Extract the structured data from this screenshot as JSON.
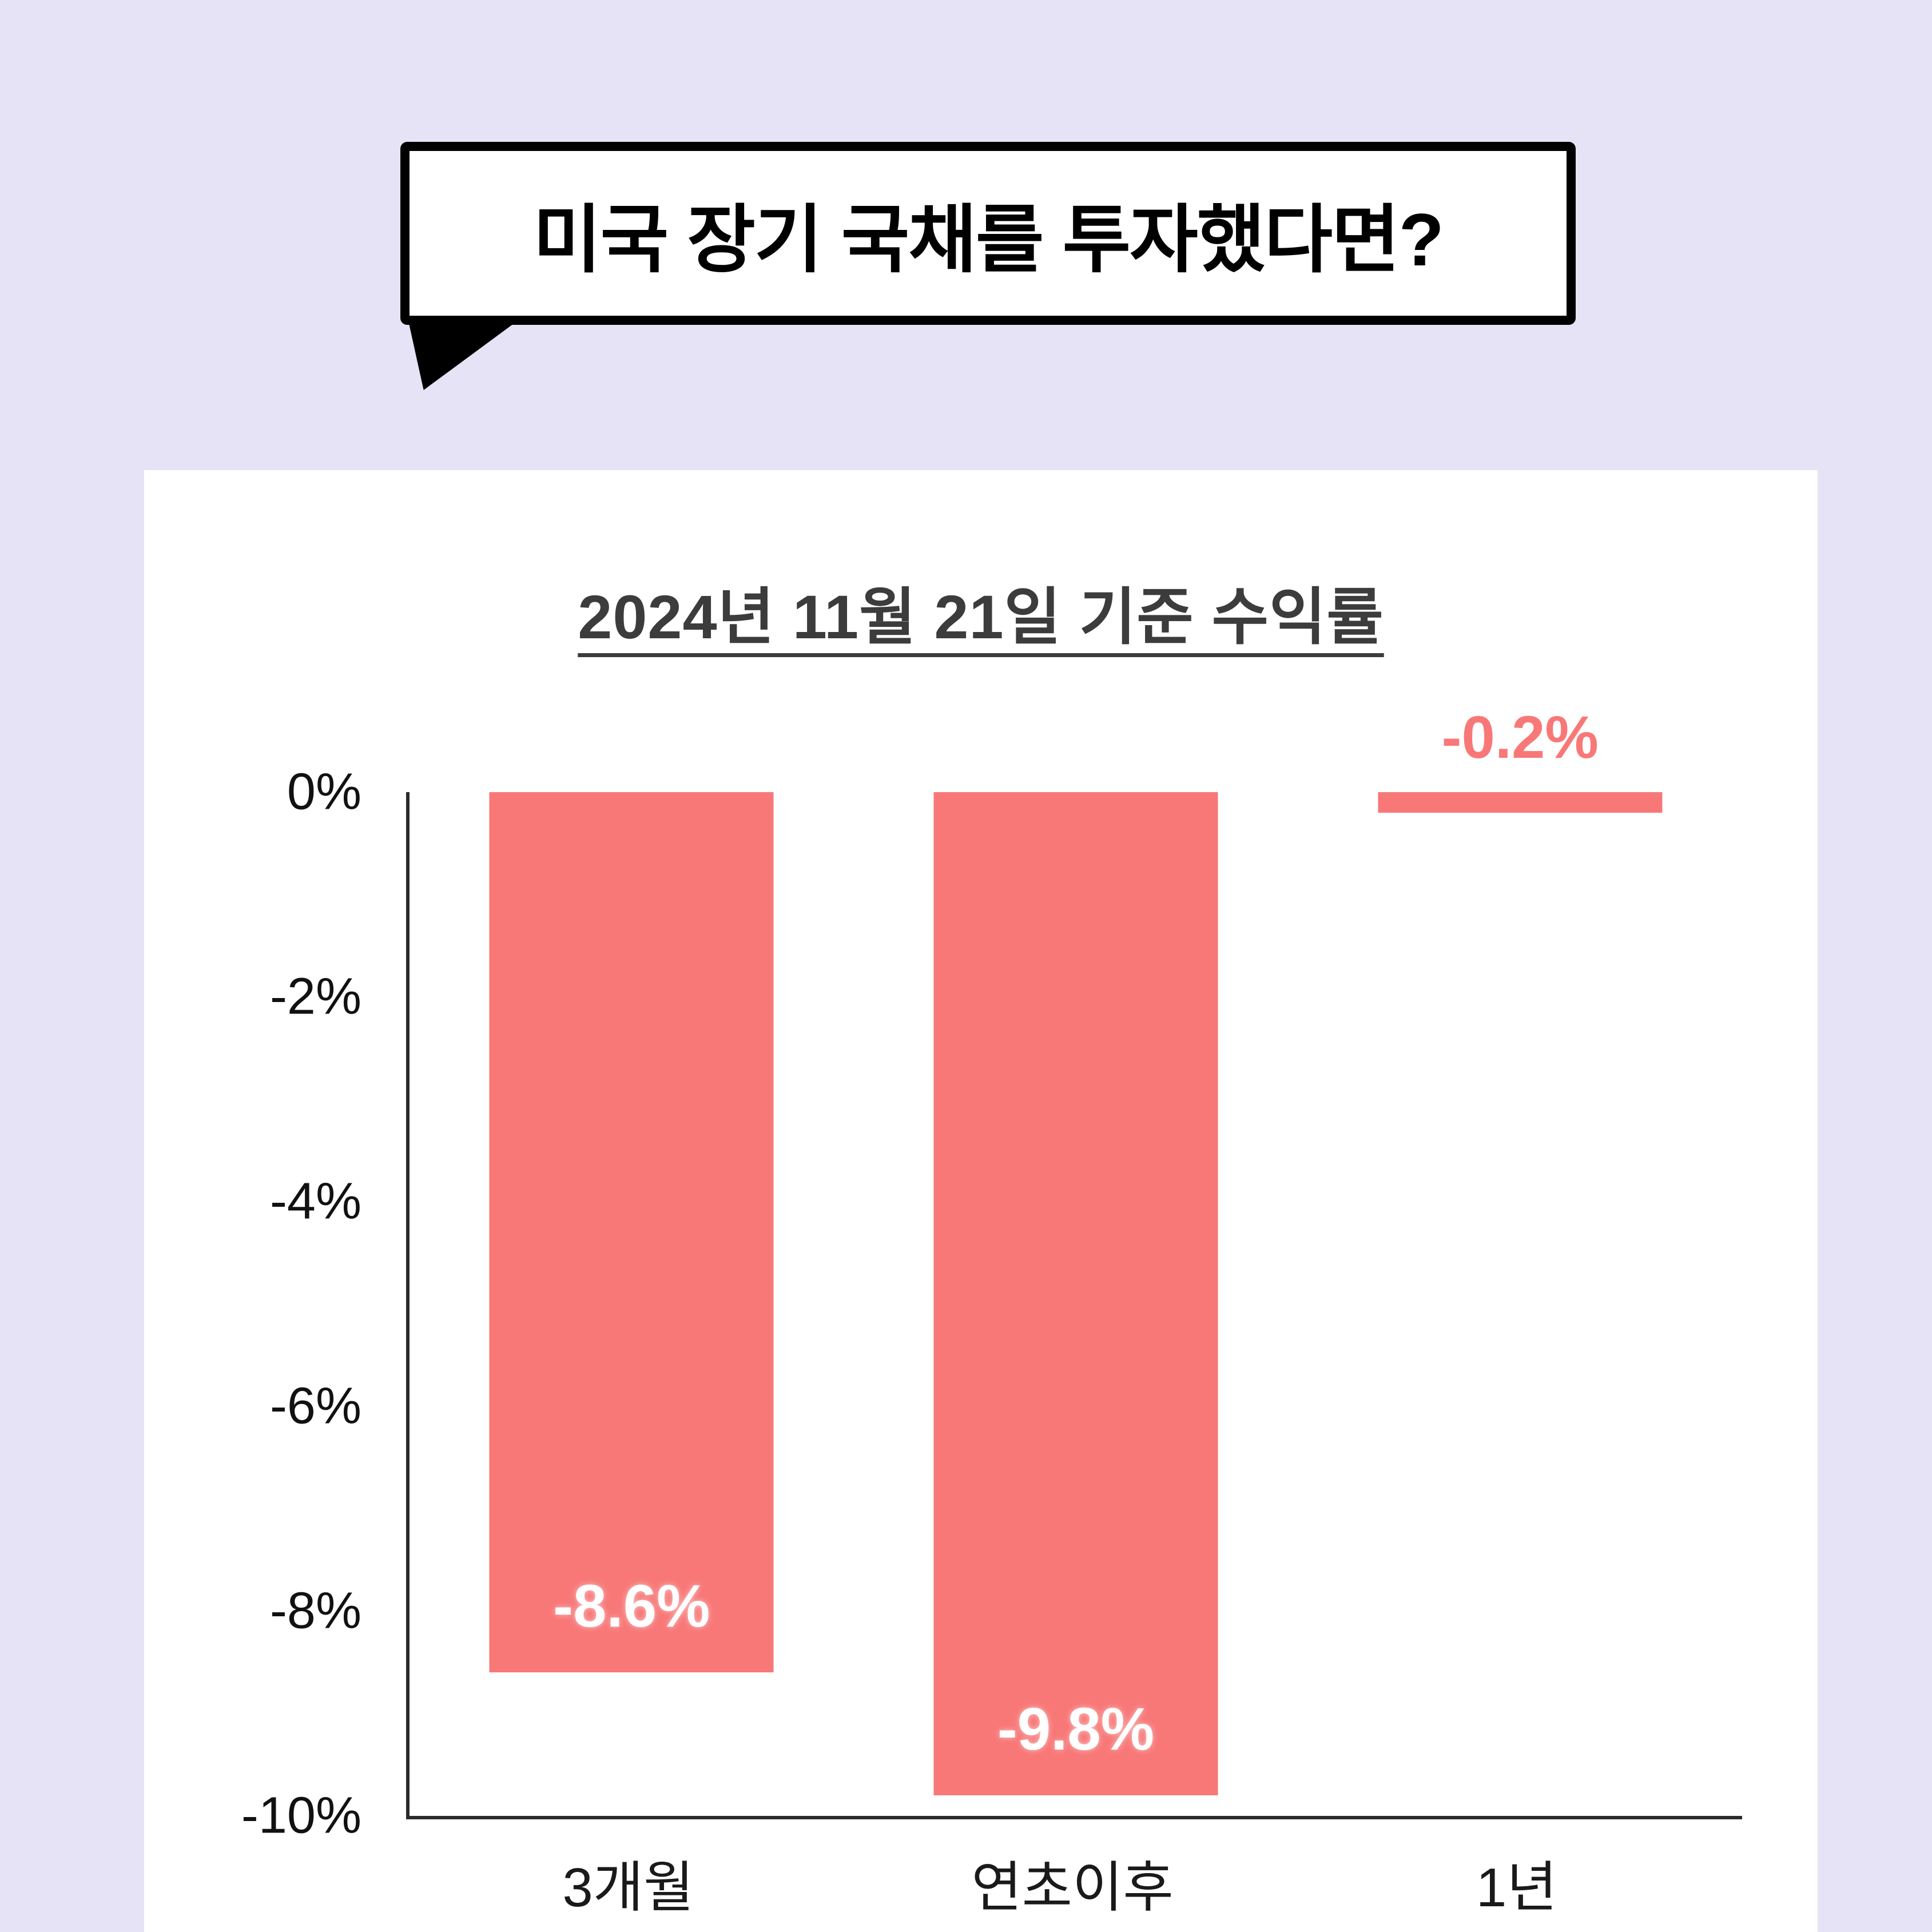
{
  "speech_bubble": {
    "text": "미국 장기 국채를 투자했다면?"
  },
  "chart_data": {
    "type": "bar",
    "title": "2024년 11월 21일 기준 수익률",
    "categories": [
      "3개월",
      "연초이후",
      "1년"
    ],
    "values": [
      -8.6,
      -9.8,
      -0.2
    ],
    "value_labels": [
      "-8.6%",
      "-9.8%",
      "-0.2%"
    ],
    "y_ticks": [
      "0%",
      "-2%",
      "-4%",
      "-6%",
      "-8%",
      "-10%"
    ],
    "ylim": [
      -10,
      0
    ],
    "grid": false,
    "legend": "none",
    "bar_color": "#F87878",
    "value_label_inside_color": "#FFFFFF",
    "axis_color": "#2B2B2B"
  },
  "colors": {
    "page_background": "#E7E3F6",
    "card_background": "#FFFFFF",
    "bubble_border": "#000000",
    "title_color": "#3C3C3C",
    "tick_color": "#111111"
  }
}
